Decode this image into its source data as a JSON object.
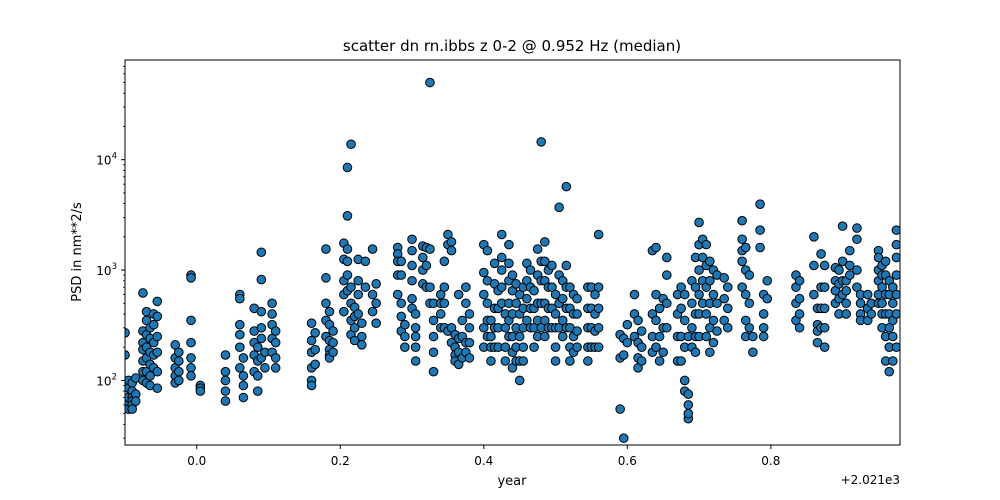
{
  "chart_data": {
    "type": "scatter",
    "title": "scatter dn rn.ibbs z 0-2 @ 0.952 Hz (median)",
    "xlabel": "year",
    "ylabel": "PSD in nm**2/s",
    "x_offset_label": "+2.021e3",
    "xlim": [
      -0.1,
      0.98
    ],
    "ylim": [
      26,
      80000
    ],
    "y_scale": "log",
    "grid": false,
    "x_ticks": [
      0.0,
      0.2,
      0.4,
      0.6,
      0.8
    ],
    "x_tick_labels": [
      "0.0",
      "0.2",
      "0.4",
      "0.6",
      "0.8"
    ],
    "y_ticks": [
      100,
      1000,
      10000
    ],
    "y_tick_labels": [
      {
        "base": "10",
        "exp": "2"
      },
      {
        "base": "10",
        "exp": "3"
      },
      {
        "base": "10",
        "exp": "4"
      }
    ],
    "marker_color": "#1f77b4",
    "marker_edge_color": "#000000",
    "series": [
      {
        "x": [
          -0.1,
          -0.1,
          -0.1,
          -0.095,
          -0.095,
          -0.095,
          -0.095,
          -0.09,
          -0.09,
          -0.09,
          -0.09,
          -0.09,
          -0.09,
          -0.085,
          -0.085,
          -0.085,
          -0.075,
          -0.075,
          -0.075,
          -0.075,
          -0.075,
          -0.075,
          -0.075,
          -0.07,
          -0.07,
          -0.07,
          -0.07,
          -0.07,
          -0.07,
          -0.07,
          -0.065,
          -0.065,
          -0.065,
          -0.065,
          -0.065,
          -0.065,
          -0.06,
          -0.06,
          -0.06,
          -0.06,
          -0.06,
          -0.055,
          -0.055,
          -0.055,
          -0.055,
          -0.055,
          -0.055,
          -0.03,
          -0.03,
          -0.03,
          -0.03,
          -0.03,
          -0.025,
          -0.025,
          -0.025,
          -0.025,
          -0.008,
          -0.008,
          -0.008,
          -0.008,
          -0.008,
          -0.008,
          -0.008,
          0.005,
          0.005,
          0.005,
          0.04,
          0.04,
          0.04,
          0.04,
          0.04,
          0.06,
          0.06,
          0.06,
          0.06,
          0.06,
          0.06,
          0.065,
          0.065,
          0.065,
          0.065,
          0.08,
          0.08,
          0.08,
          0.08,
          0.08,
          0.085,
          0.085,
          0.085,
          0.085,
          0.09,
          0.09,
          0.09,
          0.09,
          0.09,
          0.09,
          0.095,
          0.095,
          0.105,
          0.105,
          0.105,
          0.105,
          0.105,
          0.11,
          0.11,
          0.11,
          0.11,
          0.16,
          0.16,
          0.16,
          0.16,
          0.16,
          0.16,
          0.165,
          0.165,
          0.165,
          0.18,
          0.18,
          0.18,
          0.18,
          0.18,
          0.185,
          0.185,
          0.185,
          0.185,
          0.185,
          0.185,
          0.19,
          0.19,
          0.19,
          0.205,
          0.205,
          0.205,
          0.205,
          0.205,
          0.21,
          0.21,
          0.21,
          0.21,
          0.21,
          0.21,
          0.215,
          0.215,
          0.215,
          0.215,
          0.215,
          0.22,
          0.22,
          0.22,
          0.22,
          0.225,
          0.225,
          0.225,
          0.225,
          0.23,
          0.23,
          0.23,
          0.235,
          0.235,
          0.245,
          0.245,
          0.245,
          0.25,
          0.25,
          0.25,
          0.28,
          0.28,
          0.28,
          0.28,
          0.28,
          0.285,
          0.285,
          0.285,
          0.285,
          0.285,
          0.29,
          0.29,
          0.29,
          0.3,
          0.3,
          0.3,
          0.3,
          0.3,
          0.3,
          0.305,
          0.305,
          0.305,
          0.305,
          0.305,
          0.315,
          0.315,
          0.315,
          0.315,
          0.32,
          0.32,
          0.32,
          0.325,
          0.325,
          0.325,
          0.325,
          0.33,
          0.33,
          0.33,
          0.33,
          0.33,
          0.34,
          0.34,
          0.34,
          0.34,
          0.345,
          0.345,
          0.345,
          0.345,
          0.35,
          0.35,
          0.35,
          0.355,
          0.355,
          0.355,
          0.355,
          0.36,
          0.36,
          0.36,
          0.36,
          0.365,
          0.365,
          0.365,
          0.365,
          0.37,
          0.37,
          0.37,
          0.375,
          0.375,
          0.375,
          0.375,
          0.38,
          0.38,
          0.38,
          0.38,
          0.4,
          0.4,
          0.4,
          0.4,
          0.4,
          0.405,
          0.405,
          0.405,
          0.405,
          0.405,
          0.41,
          0.41,
          0.41,
          0.41,
          0.415,
          0.415,
          0.415,
          0.415,
          0.415,
          0.42,
          0.42,
          0.42,
          0.42,
          0.425,
          0.425,
          0.425,
          0.425,
          0.425,
          0.43,
          0.43,
          0.43,
          0.43,
          0.435,
          0.435,
          0.435,
          0.435,
          0.435,
          0.435,
          0.44,
          0.44,
          0.44,
          0.44,
          0.44,
          0.44,
          0.445,
          0.445,
          0.445,
          0.445,
          0.445,
          0.45,
          0.45,
          0.45,
          0.45,
          0.45,
          0.455,
          0.455,
          0.455,
          0.455,
          0.455,
          0.46,
          0.46,
          0.46,
          0.46,
          0.465,
          0.465,
          0.465,
          0.465,
          0.47,
          0.47,
          0.47,
          0.47,
          0.475,
          0.475,
          0.475,
          0.475,
          0.475,
          0.48,
          0.48,
          0.48,
          0.48,
          0.48,
          0.485,
          0.485,
          0.485,
          0.485,
          0.485,
          0.485,
          0.49,
          0.49,
          0.49,
          0.49,
          0.495,
          0.495,
          0.495,
          0.495,
          0.5,
          0.5,
          0.5,
          0.5,
          0.5,
          0.505,
          0.505,
          0.505,
          0.505,
          0.51,
          0.51,
          0.51,
          0.51,
          0.515,
          0.515,
          0.515,
          0.515,
          0.515,
          0.52,
          0.52,
          0.52,
          0.52,
          0.52,
          0.525,
          0.525,
          0.525,
          0.525,
          0.53,
          0.53,
          0.53,
          0.53,
          0.545,
          0.545,
          0.545,
          0.545,
          0.545,
          0.55,
          0.55,
          0.55,
          0.55,
          0.555,
          0.555,
          0.555,
          0.555,
          0.56,
          0.56,
          0.56,
          0.56,
          0.56,
          0.59,
          0.59,
          0.59,
          0.595,
          0.595,
          0.595,
          0.6,
          0.6,
          0.61,
          0.61,
          0.61,
          0.615,
          0.615,
          0.615,
          0.615,
          0.62,
          0.62,
          0.62,
          0.635,
          0.635,
          0.635,
          0.635,
          0.64,
          0.64,
          0.64,
          0.64,
          0.645,
          0.645,
          0.645,
          0.65,
          0.65,
          0.65,
          0.655,
          0.655,
          0.655,
          0.655,
          0.67,
          0.67,
          0.67,
          0.67,
          0.675,
          0.675,
          0.675,
          0.675,
          0.68,
          0.68,
          0.68,
          0.68,
          0.68,
          0.685,
          0.685,
          0.685,
          0.685,
          0.685,
          0.69,
          0.69,
          0.69,
          0.69,
          0.695,
          0.695,
          0.695,
          0.695,
          0.695,
          0.7,
          0.7,
          0.7,
          0.7,
          0.7,
          0.7,
          0.705,
          0.705,
          0.705,
          0.705,
          0.71,
          0.71,
          0.71,
          0.71,
          0.71,
          0.715,
          0.715,
          0.715,
          0.715,
          0.715,
          0.72,
          0.72,
          0.72,
          0.72,
          0.725,
          0.725,
          0.725,
          0.735,
          0.735,
          0.735,
          0.74,
          0.74,
          0.74,
          0.76,
          0.76,
          0.76,
          0.76,
          0.76,
          0.765,
          0.765,
          0.765,
          0.765,
          0.765,
          0.77,
          0.77,
          0.77,
          0.775,
          0.775,
          0.785,
          0.785,
          0.785,
          0.79,
          0.79,
          0.79,
          0.79,
          0.795,
          0.795,
          0.835,
          0.835,
          0.835,
          0.835,
          0.84,
          0.84,
          0.84,
          0.84,
          0.86,
          0.86,
          0.86,
          0.865,
          0.865,
          0.865,
          0.865,
          0.87,
          0.87,
          0.87,
          0.87,
          0.875,
          0.875,
          0.875,
          0.875,
          0.875,
          0.89,
          0.89,
          0.89,
          0.89,
          0.895,
          0.895,
          0.895,
          0.895,
          0.9,
          0.9,
          0.9,
          0.9,
          0.905,
          0.905,
          0.905,
          0.905,
          0.91,
          0.91,
          0.91,
          0.92,
          0.92,
          0.92,
          0.92,
          0.925,
          0.925,
          0.925,
          0.925,
          0.935,
          0.935,
          0.935,
          0.94,
          0.94,
          0.95,
          0.95,
          0.95,
          0.95,
          0.95,
          0.95,
          0.955,
          0.955,
          0.955,
          0.955,
          0.955,
          0.955,
          0.96,
          0.96,
          0.96,
          0.96,
          0.96,
          0.96,
          0.965,
          0.965,
          0.965,
          0.965,
          0.965,
          0.965,
          0.97,
          0.97,
          0.97,
          0.97,
          0.97,
          0.975,
          0.975,
          0.975,
          0.975,
          0.975,
          0.975,
          0.975
        ],
        "y": [
          270,
          170,
          60,
          100,
          85,
          70,
          55,
          95,
          80,
          70,
          65,
          60,
          55,
          105,
          75,
          65,
          620,
          280,
          220,
          190,
          150,
          120,
          100,
          420,
          350,
          260,
          200,
          160,
          120,
          95,
          300,
          240,
          180,
          140,
          110,
          90,
          400,
          320,
          220,
          170,
          130,
          520,
          380,
          250,
          180,
          120,
          85,
          210,
          160,
          130,
          110,
          95,
          180,
          150,
          120,
          100,
          900,
          850,
          350,
          220,
          160,
          130,
          110,
          90,
          85,
          80,
          170,
          120,
          100,
          80,
          65,
          600,
          550,
          320,
          260,
          200,
          130,
          160,
          110,
          90,
          70,
          450,
          280,
          220,
          170,
          120,
          200,
          150,
          110,
          80,
          1450,
          820,
          420,
          300,
          240,
          160,
          180,
          130,
          500,
          400,
          320,
          240,
          180,
          280,
          220,
          160,
          130,
          330,
          230,
          180,
          130,
          100,
          90,
          270,
          190,
          140,
          1550,
          850,
          500,
          350,
          250,
          420,
          320,
          230,
          190,
          170,
          160,
          280,
          220,
          180,
          1750,
          1250,
          800,
          600,
          420,
          8500,
          3100,
          1550,
          1200,
          900,
          650,
          13800,
          700,
          500,
          350,
          260,
          460,
          380,
          300,
          230,
          1250,
          800,
          600,
          400,
          330,
          250,
          210,
          1200,
          700,
          1550,
          600,
          420,
          750,
          500,
          330,
          1600,
          1400,
          1200,
          900,
          600,
          1200,
          900,
          500,
          380,
          280,
          320,
          250,
          200,
          1900,
          1500,
          1100,
          800,
          550,
          450,
          400,
          300,
          250,
          200,
          150,
          1650,
          1300,
          1000,
          750,
          1600,
          1100,
          700,
          50000,
          1550,
          700,
          500,
          500,
          350,
          250,
          180,
          120,
          600,
          500,
          400,
          300,
          1200,
          700,
          500,
          300,
          2100,
          1700,
          280,
          1800,
          1500,
          300,
          220,
          260,
          200,
          170,
          150,
          600,
          240,
          180,
          140,
          350,
          250,
          160,
          700,
          500,
          220,
          180,
          400,
          300,
          220,
          160,
          1700,
          950,
          600,
          300,
          200,
          1500,
          800,
          500,
          350,
          250,
          350,
          250,
          200,
          150,
          1150,
          750,
          450,
          300,
          200,
          650,
          450,
          300,
          200,
          2100,
          1300,
          1000,
          700,
          500,
          400,
          300,
          200,
          150,
          1700,
          1150,
          800,
          500,
          350,
          250,
          900,
          650,
          400,
          250,
          180,
          130,
          750,
          500,
          300,
          200,
          150,
          600,
          400,
          250,
          150,
          100,
          700,
          450,
          300,
          200,
          150,
          1150,
          800,
          550,
          350,
          1000,
          700,
          450,
          300,
          650,
          450,
          300,
          200,
          1550,
          900,
          500,
          350,
          250,
          14500,
          1200,
          800,
          500,
          300,
          1800,
          1200,
          800,
          500,
          350,
          250,
          1000,
          700,
          450,
          300,
          1100,
          700,
          450,
          300,
          600,
          400,
          300,
          200,
          150,
          3700,
          900,
          500,
          300,
          800,
          550,
          350,
          250,
          5700,
          1100,
          700,
          450,
          300,
          700,
          450,
          300,
          200,
          150,
          600,
          400,
          250,
          180,
          550,
          400,
          280,
          200,
          700,
          450,
          300,
          200,
          150,
          700,
          450,
          300,
          200,
          600,
          400,
          280,
          200,
          2100,
          700,
          450,
          300,
          200,
          260,
          160,
          55,
          240,
          170,
          30,
          320,
          220,
          600,
          400,
          250,
          350,
          220,
          160,
          130,
          280,
          200,
          150,
          1500,
          400,
          250,
          180,
          1600,
          600,
          350,
          200,
          450,
          250,
          150,
          550,
          300,
          180,
          1300,
          900,
          500,
          300,
          600,
          400,
          250,
          150,
          700,
          450,
          250,
          150,
          600,
          350,
          200,
          100,
          80,
          45,
          75,
          60,
          50,
          250,
          800,
          500,
          300,
          200,
          1300,
          700,
          400,
          250,
          180,
          2700,
          1700,
          1000,
          600,
          400,
          250,
          1900,
          1300,
          800,
          500,
          1700,
          1100,
          700,
          400,
          250,
          1200,
          800,
          500,
          300,
          180,
          1000,
          600,
          350,
          220,
          900,
          500,
          280,
          850,
          550,
          350,
          700,
          450,
          300,
          2800,
          1900,
          1500,
          1200,
          700,
          1600,
          1000,
          600,
          350,
          250,
          900,
          500,
          300,
          250,
          180,
          3950,
          2300,
          1600,
          600,
          400,
          300,
          250,
          800,
          550,
          900,
          700,
          500,
          350,
          800,
          550,
          400,
          300,
          2000,
          1100,
          600,
          450,
          320,
          280,
          220,
          1400,
          700,
          450,
          300,
          1100,
          700,
          450,
          300,
          200,
          1050,
          800,
          650,
          500,
          1000,
          750,
          550,
          400,
          2500,
          1200,
          800,
          600,
          800,
          650,
          500,
          400,
          1500,
          1100,
          900,
          2400,
          1900,
          1000,
          700,
          600,
          500,
          400,
          350,
          600,
          450,
          350,
          500,
          400,
          1500,
          1300,
          1000,
          800,
          600,
          500,
          1100,
          900,
          700,
          500,
          400,
          300,
          1200,
          900,
          600,
          400,
          250,
          150,
          800,
          600,
          400,
          300,
          200,
          120,
          700,
          500,
          350,
          250,
          150,
          2300,
          1700,
          1300,
          900,
          600,
          400,
          200
        ]
      }
    ]
  }
}
